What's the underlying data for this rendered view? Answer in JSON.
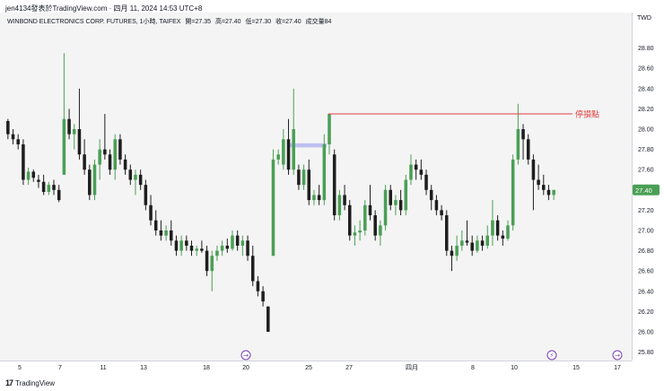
{
  "header": {
    "attribution": "jen4134發表於TradingView.com · 四月 11, 2024 14:53 UTC+8"
  },
  "legend": {
    "symbol": "WINBOND ELECTRONICS CORP. FUTURES, 1小時, TAIFEX",
    "open": "開=27.35",
    "high": "高=27.40",
    "low": "低=27.30",
    "close": "收=27.40",
    "volume": "成交量84"
  },
  "axis": {
    "currency": "TWD"
  },
  "footer": {
    "brand": "TradingView",
    "brand_mark": "17"
  },
  "colors": {
    "up": "#4a9f55",
    "down": "#1e1e1e",
    "stop_line": "#e04040",
    "price_tag": "#4a9f55",
    "highlight": "#b3b6f0",
    "event_icon": "#7b3fb5"
  },
  "icons": [
    "event-arrow-icon",
    "event-lightning-icon",
    "event-lightning-icon",
    "event-arrow-icon"
  ],
  "chart_data": {
    "type": "candlestick",
    "title": "WINBOND ELECTRONICS CORP. FUTURES, 1小時, TAIFEX",
    "ylabel": "TWD",
    "ylim": [
      25.75,
      29.0
    ],
    "yticks": [
      "25.80",
      "26.00",
      "26.20",
      "26.40",
      "26.60",
      "26.80",
      "27.00",
      "27.20",
      "27.40",
      "27.60",
      "27.80",
      "28.00",
      "28.20",
      "28.40",
      "28.60",
      "28.80"
    ],
    "xticks": [
      "5",
      "7",
      "11",
      "13",
      "18",
      "20",
      "25",
      "27",
      "四月",
      "8",
      "10",
      "15",
      "17"
    ],
    "last_price": "27.40",
    "stop_loss": {
      "label": "停損點",
      "price": 28.15
    },
    "highlight_zone": {
      "low": 27.82,
      "high": 27.86
    },
    "grid": false,
    "candles": [
      {
        "o": 28.08,
        "h": 28.1,
        "l": 27.9,
        "c": 27.95
      },
      {
        "o": 27.95,
        "h": 28.0,
        "l": 27.85,
        "c": 27.9
      },
      {
        "o": 27.9,
        "h": 27.95,
        "l": 27.8,
        "c": 27.85
      },
      {
        "o": 27.85,
        "h": 27.9,
        "l": 27.45,
        "c": 27.5
      },
      {
        "o": 27.5,
        "h": 27.62,
        "l": 27.45,
        "c": 27.58
      },
      {
        "o": 27.58,
        "h": 27.6,
        "l": 27.48,
        "c": 27.52
      },
      {
        "o": 27.5,
        "h": 27.55,
        "l": 27.42,
        "c": 27.48
      },
      {
        "o": 27.48,
        "h": 27.55,
        "l": 27.35,
        "c": 27.38
      },
      {
        "o": 27.38,
        "h": 27.48,
        "l": 27.35,
        "c": 27.45
      },
      {
        "o": 27.45,
        "h": 27.5,
        "l": 27.35,
        "c": 27.4
      },
      {
        "o": 27.4,
        "h": 27.45,
        "l": 27.28,
        "c": 27.3
      },
      {
        "o": 27.55,
        "h": 28.75,
        "l": 27.55,
        "c": 28.1
      },
      {
        "o": 28.1,
        "h": 28.2,
        "l": 27.9,
        "c": 27.95
      },
      {
        "o": 27.95,
        "h": 28.05,
        "l": 27.8,
        "c": 28.0
      },
      {
        "o": 28.0,
        "h": 28.4,
        "l": 27.7,
        "c": 27.75
      },
      {
        "o": 27.75,
        "h": 27.9,
        "l": 27.55,
        "c": 27.6
      },
      {
        "o": 27.6,
        "h": 27.65,
        "l": 27.3,
        "c": 27.35
      },
      {
        "o": 27.35,
        "h": 27.7,
        "l": 27.3,
        "c": 27.65
      },
      {
        "o": 27.65,
        "h": 27.9,
        "l": 27.5,
        "c": 27.8
      },
      {
        "o": 27.8,
        "h": 28.15,
        "l": 27.7,
        "c": 27.75
      },
      {
        "o": 27.75,
        "h": 27.8,
        "l": 27.55,
        "c": 27.6
      },
      {
        "o": 27.6,
        "h": 27.95,
        "l": 27.5,
        "c": 27.9
      },
      {
        "o": 27.9,
        "h": 27.95,
        "l": 27.65,
        "c": 27.7
      },
      {
        "o": 27.7,
        "h": 27.75,
        "l": 27.55,
        "c": 27.6
      },
      {
        "o": 27.6,
        "h": 27.65,
        "l": 27.45,
        "c": 27.5
      },
      {
        "o": 27.5,
        "h": 27.6,
        "l": 27.35,
        "c": 27.55
      },
      {
        "o": 27.55,
        "h": 27.6,
        "l": 27.4,
        "c": 27.45
      },
      {
        "o": 27.45,
        "h": 27.5,
        "l": 27.2,
        "c": 27.25
      },
      {
        "o": 27.25,
        "h": 27.35,
        "l": 27.05,
        "c": 27.1
      },
      {
        "o": 27.1,
        "h": 27.2,
        "l": 26.95,
        "c": 27.0
      },
      {
        "o": 27.0,
        "h": 27.1,
        "l": 26.9,
        "c": 26.95
      },
      {
        "o": 26.95,
        "h": 27.05,
        "l": 26.9,
        "c": 27.0
      },
      {
        "o": 27.0,
        "h": 27.1,
        "l": 26.85,
        "c": 26.9
      },
      {
        "o": 26.9,
        "h": 26.95,
        "l": 26.75,
        "c": 26.8
      },
      {
        "o": 26.8,
        "h": 26.95,
        "l": 26.75,
        "c": 26.9
      },
      {
        "o": 26.9,
        "h": 26.95,
        "l": 26.8,
        "c": 26.85
      },
      {
        "o": 26.85,
        "h": 26.9,
        "l": 26.75,
        "c": 26.8
      },
      {
        "o": 26.8,
        "h": 26.85,
        "l": 26.75,
        "c": 26.82
      },
      {
        "o": 26.82,
        "h": 26.9,
        "l": 26.78,
        "c": 26.8
      },
      {
        "o": 26.8,
        "h": 26.85,
        "l": 26.55,
        "c": 26.6
      },
      {
        "o": 26.6,
        "h": 26.8,
        "l": 26.4,
        "c": 26.75
      },
      {
        "o": 26.75,
        "h": 26.85,
        "l": 26.7,
        "c": 26.8
      },
      {
        "o": 26.8,
        "h": 26.9,
        "l": 26.75,
        "c": 26.85
      },
      {
        "o": 26.85,
        "h": 26.92,
        "l": 26.78,
        "c": 26.82
      },
      {
        "o": 26.82,
        "h": 27.0,
        "l": 26.8,
        "c": 26.95
      },
      {
        "o": 26.95,
        "h": 27.0,
        "l": 26.8,
        "c": 26.85
      },
      {
        "o": 26.85,
        "h": 26.95,
        "l": 26.75,
        "c": 26.9
      },
      {
        "o": 26.9,
        "h": 26.95,
        "l": 26.7,
        "c": 26.75
      },
      {
        "o": 26.75,
        "h": 26.85,
        "l": 26.45,
        "c": 26.5
      },
      {
        "o": 26.5,
        "h": 26.55,
        "l": 26.35,
        "c": 26.4
      },
      {
        "o": 26.4,
        "h": 26.45,
        "l": 26.25,
        "c": 26.3
      },
      {
        "o": 26.25,
        "h": 26.25,
        "l": 26.0,
        "c": 26.0
      },
      {
        "o": 26.75,
        "h": 27.8,
        "l": 26.75,
        "c": 27.7
      },
      {
        "o": 27.7,
        "h": 27.8,
        "l": 27.65,
        "c": 27.75
      },
      {
        "o": 27.65,
        "h": 28.0,
        "l": 27.6,
        "c": 27.9
      },
      {
        "o": 27.9,
        "h": 28.1,
        "l": 27.55,
        "c": 27.6
      },
      {
        "o": 27.6,
        "h": 28.4,
        "l": 27.55,
        "c": 28.0
      },
      {
        "o": 27.6,
        "h": 27.65,
        "l": 27.4,
        "c": 27.45
      },
      {
        "o": 27.45,
        "h": 27.65,
        "l": 27.4,
        "c": 27.6
      },
      {
        "o": 27.6,
        "h": 27.7,
        "l": 27.25,
        "c": 27.3
      },
      {
        "o": 27.3,
        "h": 27.4,
        "l": 27.25,
        "c": 27.35
      },
      {
        "o": 27.35,
        "h": 27.45,
        "l": 27.25,
        "c": 27.3
      },
      {
        "o": 27.3,
        "h": 27.95,
        "l": 27.25,
        "c": 27.85
      },
      {
        "o": 27.85,
        "h": 28.15,
        "l": 27.75,
        "c": 28.15
      },
      {
        "o": 27.75,
        "h": 27.8,
        "l": 27.1,
        "c": 27.15
      },
      {
        "o": 27.15,
        "h": 27.4,
        "l": 27.1,
        "c": 27.35
      },
      {
        "o": 27.35,
        "h": 27.45,
        "l": 27.2,
        "c": 27.25
      },
      {
        "o": 27.25,
        "h": 27.3,
        "l": 26.9,
        "c": 26.95
      },
      {
        "o": 26.95,
        "h": 27.05,
        "l": 26.85,
        "c": 26.98
      },
      {
        "o": 26.98,
        "h": 27.1,
        "l": 26.9,
        "c": 27.0
      },
      {
        "o": 27.0,
        "h": 27.3,
        "l": 26.95,
        "c": 27.25
      },
      {
        "o": 27.25,
        "h": 27.45,
        "l": 27.1,
        "c": 27.15
      },
      {
        "o": 27.15,
        "h": 27.2,
        "l": 26.9,
        "c": 26.95
      },
      {
        "o": 26.95,
        "h": 27.1,
        "l": 26.85,
        "c": 27.05
      },
      {
        "o": 27.05,
        "h": 27.45,
        "l": 27.0,
        "c": 27.4
      },
      {
        "o": 27.4,
        "h": 27.45,
        "l": 27.2,
        "c": 27.25
      },
      {
        "o": 27.25,
        "h": 27.35,
        "l": 27.15,
        "c": 27.3
      },
      {
        "o": 27.3,
        "h": 27.4,
        "l": 27.15,
        "c": 27.2
      },
      {
        "o": 27.2,
        "h": 27.55,
        "l": 27.15,
        "c": 27.5
      },
      {
        "o": 27.5,
        "h": 27.75,
        "l": 27.45,
        "c": 27.65
      },
      {
        "o": 27.65,
        "h": 27.7,
        "l": 27.5,
        "c": 27.6
      },
      {
        "o": 27.6,
        "h": 27.7,
        "l": 27.5,
        "c": 27.55
      },
      {
        "o": 27.55,
        "h": 27.6,
        "l": 27.35,
        "c": 27.4
      },
      {
        "o": 27.4,
        "h": 27.45,
        "l": 27.2,
        "c": 27.3
      },
      {
        "o": 27.3,
        "h": 27.35,
        "l": 27.15,
        "c": 27.2
      },
      {
        "o": 27.2,
        "h": 27.25,
        "l": 27.1,
        "c": 27.15
      },
      {
        "o": 27.15,
        "h": 27.2,
        "l": 26.75,
        "c": 26.8
      },
      {
        "o": 26.8,
        "h": 26.85,
        "l": 26.6,
        "c": 26.75
      },
      {
        "o": 26.75,
        "h": 26.95,
        "l": 26.7,
        "c": 26.85
      },
      {
        "o": 26.85,
        "h": 27.0,
        "l": 26.8,
        "c": 26.9
      },
      {
        "o": 26.9,
        "h": 27.1,
        "l": 26.85,
        "c": 26.88
      },
      {
        "o": 26.88,
        "h": 26.95,
        "l": 26.75,
        "c": 26.8
      },
      {
        "o": 26.8,
        "h": 26.95,
        "l": 26.78,
        "c": 26.9
      },
      {
        "o": 26.9,
        "h": 26.95,
        "l": 26.8,
        "c": 26.85
      },
      {
        "o": 26.85,
        "h": 27.05,
        "l": 26.82,
        "c": 26.95
      },
      {
        "o": 26.95,
        "h": 27.3,
        "l": 26.85,
        "c": 27.1
      },
      {
        "o": 27.1,
        "h": 27.15,
        "l": 26.9,
        "c": 26.95
      },
      {
        "o": 26.95,
        "h": 27.0,
        "l": 26.85,
        "c": 26.92
      },
      {
        "o": 26.92,
        "h": 27.1,
        "l": 26.9,
        "c": 27.05
      },
      {
        "o": 27.05,
        "h": 27.75,
        "l": 27.0,
        "c": 27.7
      },
      {
        "o": 27.7,
        "h": 28.25,
        "l": 27.65,
        "c": 28.0
      },
      {
        "o": 28.0,
        "h": 28.05,
        "l": 27.7,
        "c": 27.9
      },
      {
        "o": 27.9,
        "h": 27.95,
        "l": 27.65,
        "c": 27.7
      },
      {
        "o": 27.7,
        "h": 27.75,
        "l": 27.2,
        "c": 27.5
      },
      {
        "o": 27.5,
        "h": 27.65,
        "l": 27.4,
        "c": 27.45
      },
      {
        "o": 27.45,
        "h": 27.55,
        "l": 27.35,
        "c": 27.4
      },
      {
        "o": 27.4,
        "h": 27.45,
        "l": 27.3,
        "c": 27.35
      },
      {
        "o": 27.35,
        "h": 27.4,
        "l": 27.3,
        "c": 27.4
      }
    ]
  }
}
